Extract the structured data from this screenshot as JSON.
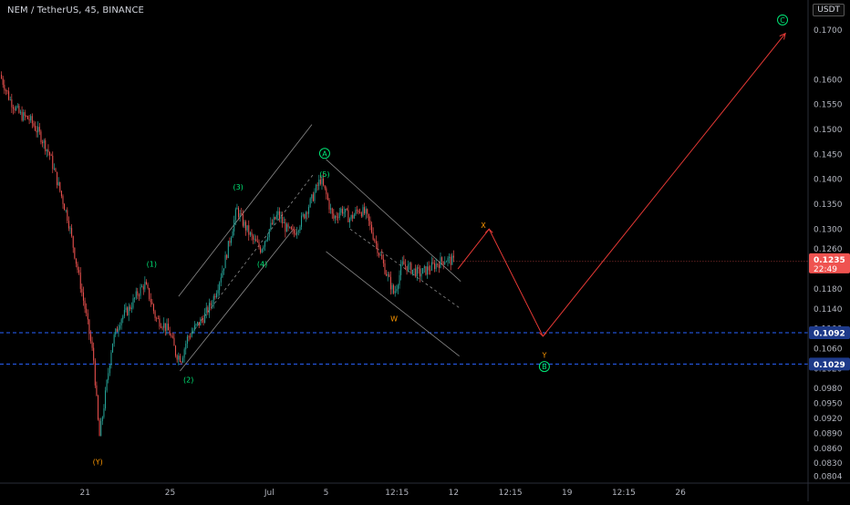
{
  "title": "NEM / TetherUS, 45, BINANCE",
  "unit": "USDT",
  "colors": {
    "up": "#26a69a",
    "down": "#ef5350",
    "wave": "#00e676",
    "corrective": "#ff9800",
    "projection": "#e53935",
    "hline": "#2962ff",
    "channel": "#8a8a8a",
    "axis_text": "#b2b5be",
    "background": "#000000",
    "price_tag": "#ef5350",
    "level_tag": "#1e3a8a"
  },
  "chart_data": {
    "type": "candlestick",
    "symbol": "NEM / TetherUS",
    "interval": "45",
    "exchange": "BINANCE",
    "ylim": [
      0.079,
      0.176
    ],
    "y_ticks": [
      0.17,
      0.16,
      0.155,
      0.15,
      0.145,
      0.14,
      0.135,
      0.13,
      0.126,
      0.122,
      0.118,
      0.114,
      0.11,
      0.106,
      0.102,
      0.098,
      0.095,
      0.092,
      0.089,
      0.086,
      0.083,
      0.0804
    ],
    "y_tick_labels": [
      "0.1700",
      "0.1600",
      "0.1550",
      "0.1500",
      "0.1450",
      "0.1400",
      "0.1350",
      "0.1300",
      "0.1260",
      "0.1220",
      "0.1180",
      "0.1140",
      "0.1100",
      "0.1060",
      "0.1020",
      "0.0980",
      "0.0950",
      "0.0920",
      "0.0890",
      "0.0860",
      "0.0830",
      "0.0804"
    ],
    "x_ticks": [
      {
        "label": "21",
        "t": -6.0
      },
      {
        "label": "25",
        "t": 0.0
      },
      {
        "label": "Jul",
        "t": 7.0
      },
      {
        "label": "5",
        "t": 11.0
      },
      {
        "label": "12:15",
        "t": 16.0
      },
      {
        "label": "12",
        "t": 20.0
      },
      {
        "label": "12:15",
        "t": 24.0
      },
      {
        "label": "19",
        "t": 28.0
      },
      {
        "label": "12:15",
        "t": 32.0
      },
      {
        "label": "26",
        "t": 36.0
      }
    ],
    "price_path": [
      [
        -12.0,
        0.161
      ],
      [
        -11.3,
        0.156
      ],
      [
        -10.6,
        0.153
      ],
      [
        -9.9,
        0.152
      ],
      [
        -9.2,
        0.149
      ],
      [
        -8.5,
        0.145
      ],
      [
        -7.8,
        0.138
      ],
      [
        -7.2,
        0.132
      ],
      [
        -6.6,
        0.123
      ],
      [
        -6.0,
        0.114
      ],
      [
        -5.4,
        0.104
      ],
      [
        -5.0,
        0.088
      ],
      [
        -4.6,
        0.096
      ],
      [
        -4.1,
        0.107
      ],
      [
        -3.5,
        0.112
      ],
      [
        -2.9,
        0.114
      ],
      [
        -2.3,
        0.117
      ],
      [
        -1.8,
        0.119
      ],
      [
        -1.4,
        0.116
      ],
      [
        -1.0,
        0.112
      ],
      [
        -0.5,
        0.111
      ],
      [
        0.0,
        0.109
      ],
      [
        0.4,
        0.105
      ],
      [
        0.8,
        0.104
      ],
      [
        1.2,
        0.108
      ],
      [
        1.7,
        0.11
      ],
      [
        2.3,
        0.112
      ],
      [
        2.9,
        0.115
      ],
      [
        3.4,
        0.119
      ],
      [
        3.9,
        0.124
      ],
      [
        4.3,
        0.129
      ],
      [
        4.7,
        0.134
      ],
      [
        5.2,
        0.131
      ],
      [
        5.8,
        0.128
      ],
      [
        6.4,
        0.126
      ],
      [
        7.0,
        0.13
      ],
      [
        7.6,
        0.133
      ],
      [
        8.2,
        0.13
      ],
      [
        8.7,
        0.129
      ],
      [
        9.3,
        0.132
      ],
      [
        10.0,
        0.136
      ],
      [
        10.6,
        0.14
      ],
      [
        11.0,
        0.137
      ],
      [
        11.5,
        0.132
      ],
      [
        12.1,
        0.134
      ],
      [
        12.7,
        0.132
      ],
      [
        13.3,
        0.134
      ],
      [
        13.8,
        0.133
      ],
      [
        14.3,
        0.129
      ],
      [
        14.9,
        0.124
      ],
      [
        15.4,
        0.12
      ],
      [
        15.8,
        0.117
      ],
      [
        16.4,
        0.123
      ],
      [
        17.0,
        0.122
      ],
      [
        17.6,
        0.121
      ],
      [
        18.2,
        0.122
      ],
      [
        18.8,
        0.123
      ],
      [
        19.4,
        0.124
      ],
      [
        20.0,
        0.1235
      ]
    ],
    "last_price": "0.1235",
    "countdown": "22:49",
    "horizontal_levels": [
      {
        "label": "0.1092",
        "value": 0.1092
      },
      {
        "label": "0.1029",
        "value": 0.1029
      }
    ],
    "wave_labels": [
      {
        "text": "(1)",
        "t": -1.3,
        "y": 0.123,
        "style": "impulse"
      },
      {
        "text": "(2)",
        "t": 1.3,
        "y": 0.0998,
        "style": "impulse"
      },
      {
        "text": "(3)",
        "t": 4.8,
        "y": 0.1385,
        "style": "impulse"
      },
      {
        "text": "(4)",
        "t": 6.5,
        "y": 0.123,
        "style": "impulse"
      },
      {
        "text": "(5)",
        "t": 10.9,
        "y": 0.141,
        "style": "impulse"
      },
      {
        "text": "A",
        "t": 10.9,
        "y": 0.1452,
        "style": "circle"
      },
      {
        "text": "(Y)",
        "t": -5.1,
        "y": 0.0833,
        "style": "corrective"
      },
      {
        "text": "W",
        "t": 15.8,
        "y": 0.112,
        "style": "corrective-plain"
      },
      {
        "text": "X",
        "t": 22.1,
        "y": 0.1308,
        "style": "corrective-plain"
      },
      {
        "text": "Y",
        "t": 26.4,
        "y": 0.1047,
        "style": "corrective-plain"
      },
      {
        "text": "B",
        "t": 26.4,
        "y": 0.1024,
        "style": "circle"
      },
      {
        "text": "C",
        "t": 43.2,
        "y": 0.172,
        "style": "circle"
      }
    ],
    "projection_path": [
      [
        20.3,
        0.122
      ],
      [
        22.5,
        0.13
      ],
      [
        26.3,
        0.1085
      ],
      [
        43.4,
        0.1693
      ]
    ],
    "channels": [
      {
        "solid": [
          [
            0.6,
            0.1165
          ],
          [
            10.0,
            0.151
          ]
        ],
        "mid": [
          [
            1.5,
            0.109
          ],
          [
            10.1,
            0.141
          ]
        ],
        "lower": [
          [
            0.7,
            0.1015
          ],
          [
            8.7,
            0.13
          ]
        ]
      },
      {
        "solid": [
          [
            11.0,
            0.144
          ],
          [
            20.5,
            0.1195
          ]
        ],
        "mid": [
          [
            12.7,
            0.13
          ],
          [
            20.5,
            0.114
          ]
        ],
        "lower": [
          [
            11.0,
            0.1255
          ],
          [
            20.4,
            0.1045
          ]
        ]
      }
    ]
  }
}
